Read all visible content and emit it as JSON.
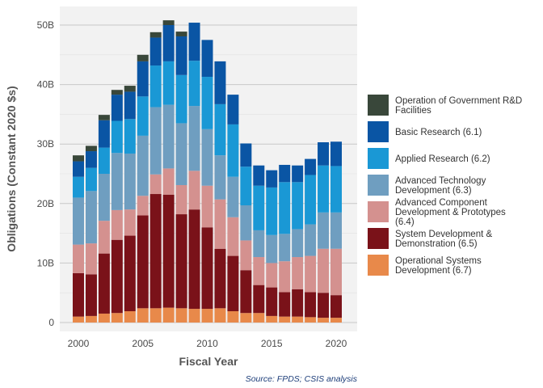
{
  "chart_data": {
    "type": "bar",
    "stacked": true,
    "xlabel": "Fiscal Year",
    "ylabel": "Obligations (Constant 2020 $s)",
    "source": "Source: FPDS; CSIS analysis",
    "ylim": [
      0,
      52
    ],
    "y_ticks": [
      0,
      10,
      20,
      30,
      40,
      50
    ],
    "y_tick_labels": [
      "0",
      "10B",
      "20B",
      "30B",
      "40B",
      "50B"
    ],
    "x_ticks": [
      2000,
      2005,
      2010,
      2015,
      2020
    ],
    "x_tick_labels": [
      "2000",
      "2005",
      "2010",
      "2015",
      "2020"
    ],
    "grid": true,
    "legend_position": "right",
    "categories": [
      2000,
      2001,
      2002,
      2003,
      2004,
      2005,
      2006,
      2007,
      2008,
      2009,
      2010,
      2011,
      2012,
      2013,
      2014,
      2015,
      2016,
      2017,
      2018,
      2019,
      2020
    ],
    "series": [
      {
        "name": "Operational Systems Development (6.7)",
        "color": "#e8894a",
        "values": [
          1.0,
          1.1,
          1.5,
          1.6,
          1.9,
          2.4,
          2.4,
          2.5,
          2.4,
          2.3,
          2.3,
          2.4,
          1.9,
          1.6,
          1.6,
          1.1,
          1.0,
          1.0,
          0.9,
          0.8,
          0.8
        ]
      },
      {
        "name": "System Development & Demonstration (6.5)",
        "color": "#7a1219",
        "values": [
          7.3,
          7.0,
          10.1,
          12.3,
          12.7,
          15.6,
          19.2,
          19.0,
          15.8,
          16.7,
          13.7,
          10.0,
          9.3,
          7.2,
          4.7,
          4.8,
          4.1,
          4.6,
          4.2,
          4.2,
          3.8
        ]
      },
      {
        "name": "Advanced Component Development & Prototypes (6.4)",
        "color": "#d4918f",
        "values": [
          4.8,
          5.2,
          5.5,
          5.0,
          4.4,
          3.3,
          3.3,
          4.4,
          4.9,
          6.5,
          7.0,
          8.3,
          6.5,
          5.0,
          4.7,
          4.1,
          5.2,
          5.4,
          6.1,
          7.4,
          7.8
        ]
      },
      {
        "name": "Advanced Technology Development (6.3)",
        "color": "#6f9ec0",
        "values": [
          7.9,
          8.8,
          7.9,
          9.6,
          9.4,
          10.1,
          11.3,
          10.7,
          10.4,
          10.9,
          9.5,
          7.4,
          6.8,
          5.9,
          4.5,
          4.7,
          4.6,
          4.7,
          5.3,
          6.1,
          6.1
        ]
      },
      {
        "name": "Applied Research (6.2)",
        "color": "#1a98d5",
        "values": [
          3.5,
          3.9,
          4.4,
          5.4,
          5.8,
          6.6,
          7.0,
          7.3,
          8.1,
          7.6,
          8.8,
          8.6,
          8.8,
          6.5,
          7.5,
          8.0,
          8.7,
          7.9,
          8.3,
          7.9,
          7.8
        ]
      },
      {
        "name": "Basic Research (6.1)",
        "color": "#0a55a4",
        "values": [
          2.6,
          2.8,
          4.6,
          4.4,
          4.6,
          5.9,
          4.7,
          6.1,
          6.5,
          6.4,
          6.2,
          7.2,
          5.0,
          3.9,
          3.4,
          2.9,
          2.9,
          2.8,
          2.7,
          3.9,
          4.1
        ]
      },
      {
        "name": "Operation of Government R&D Facilities",
        "color": "#39473a",
        "values": [
          1.0,
          0.9,
          0.9,
          0.8,
          1.0,
          1.1,
          0.9,
          0.8,
          0.8,
          0.0,
          0.0,
          0.0,
          0.0,
          0.0,
          0.0,
          0.0,
          0.0,
          0.0,
          0.0,
          0.0,
          0.0
        ]
      }
    ]
  }
}
